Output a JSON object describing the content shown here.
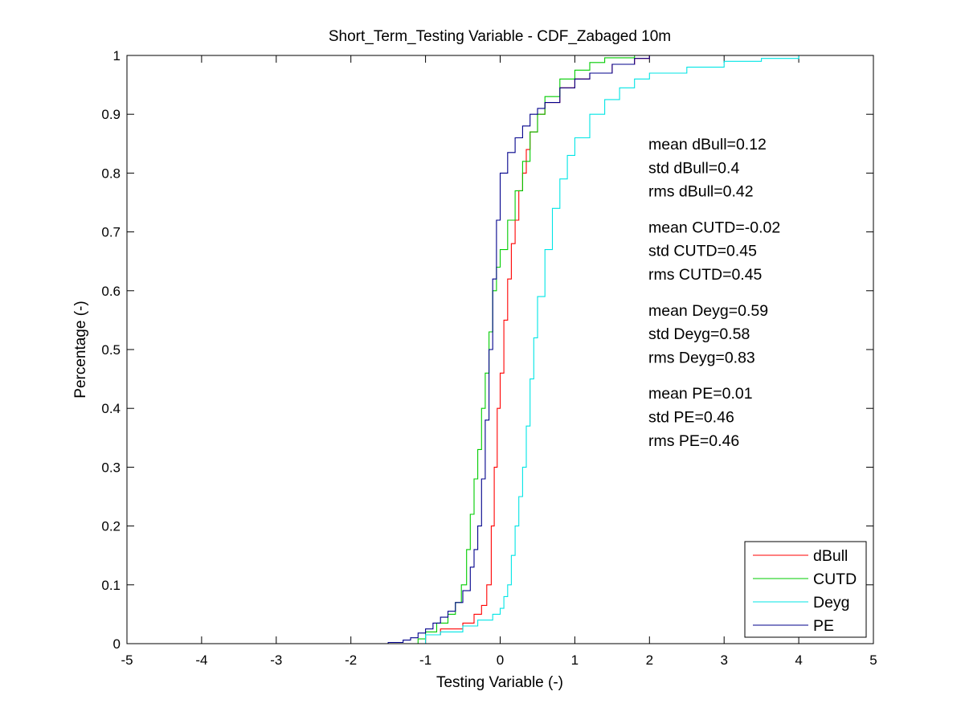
{
  "chart_data": {
    "type": "line",
    "title": "Short_Term_Testing Variable - CDF_Zabaged 10m",
    "xlabel": "Testing Variable (-)",
    "ylabel": "Percentage (-)",
    "xlim": [
      -5,
      5
    ],
    "ylim": [
      0,
      1
    ],
    "xticks": [
      -5,
      -4,
      -3,
      -2,
      -1,
      0,
      1,
      2,
      3,
      4,
      5
    ],
    "xtick_labels": [
      "-5",
      "-4",
      "-3",
      "-2",
      "-1",
      "0",
      "1",
      "2",
      "3",
      "4",
      "5"
    ],
    "yticks": [
      0,
      0.1,
      0.2,
      0.3,
      0.4,
      0.5,
      0.6,
      0.7,
      0.8,
      0.9,
      1
    ],
    "ytick_labels": [
      "0",
      "0.1",
      "0.2",
      "0.3",
      "0.4",
      "0.5",
      "0.6",
      "0.7",
      "0.8",
      "0.9",
      "1"
    ],
    "grid": false,
    "legend_position": "bottom-right",
    "series": [
      {
        "name": "dBull",
        "color": "#ff0000",
        "x": [
          -1.2,
          -1.0,
          -0.8,
          -0.5,
          -0.35,
          -0.25,
          -0.18,
          -0.12,
          -0.08,
          -0.04,
          0.0,
          0.05,
          0.1,
          0.15,
          0.2,
          0.25,
          0.3,
          0.35,
          0.4,
          0.5,
          0.6,
          0.8,
          1.0,
          1.2,
          1.5,
          1.8,
          2.0,
          2.4
        ],
        "y": [
          0.0,
          0.015,
          0.025,
          0.035,
          0.05,
          0.065,
          0.1,
          0.2,
          0.3,
          0.4,
          0.46,
          0.55,
          0.62,
          0.68,
          0.72,
          0.77,
          0.8,
          0.84,
          0.87,
          0.9,
          0.92,
          0.945,
          0.96,
          0.97,
          0.985,
          0.995,
          1.0,
          1.0
        ]
      },
      {
        "name": "CUTD",
        "color": "#00cc00",
        "x": [
          -1.25,
          -1.1,
          -1.0,
          -0.85,
          -0.7,
          -0.6,
          -0.52,
          -0.45,
          -0.4,
          -0.35,
          -0.3,
          -0.25,
          -0.2,
          -0.15,
          -0.1,
          -0.05,
          0.0,
          0.1,
          0.2,
          0.3,
          0.4,
          0.5,
          0.6,
          0.8,
          1.0,
          1.2,
          1.4,
          1.8
        ],
        "y": [
          0.0,
          0.008,
          0.02,
          0.035,
          0.05,
          0.07,
          0.1,
          0.16,
          0.22,
          0.28,
          0.33,
          0.4,
          0.46,
          0.53,
          0.6,
          0.64,
          0.67,
          0.72,
          0.77,
          0.82,
          0.87,
          0.9,
          0.93,
          0.96,
          0.975,
          0.988,
          0.996,
          1.0
        ]
      },
      {
        "name": "Deyg",
        "color": "#00e5e5",
        "x": [
          -1.1,
          -1.0,
          -0.8,
          -0.5,
          -0.3,
          -0.1,
          0.0,
          0.05,
          0.1,
          0.15,
          0.2,
          0.25,
          0.3,
          0.35,
          0.4,
          0.45,
          0.5,
          0.6,
          0.7,
          0.8,
          0.9,
          1.0,
          1.2,
          1.4,
          1.6,
          1.8,
          2.0,
          2.5,
          3.0,
          3.5,
          4.0
        ],
        "y": [
          0.0,
          0.015,
          0.02,
          0.03,
          0.04,
          0.05,
          0.06,
          0.08,
          0.1,
          0.15,
          0.2,
          0.25,
          0.3,
          0.37,
          0.45,
          0.52,
          0.59,
          0.67,
          0.74,
          0.79,
          0.83,
          0.86,
          0.9,
          0.925,
          0.945,
          0.96,
          0.97,
          0.98,
          0.99,
          0.995,
          1.0
        ]
      },
      {
        "name": "PE",
        "color": "#00008b",
        "x": [
          -2.0,
          -1.5,
          -1.3,
          -1.2,
          -1.1,
          -1.0,
          -0.9,
          -0.8,
          -0.7,
          -0.6,
          -0.5,
          -0.4,
          -0.35,
          -0.3,
          -0.25,
          -0.2,
          -0.15,
          -0.1,
          -0.05,
          0.0,
          0.1,
          0.2,
          0.3,
          0.4,
          0.5,
          0.6,
          0.8,
          1.0,
          1.2,
          1.5,
          1.8,
          2.0
        ],
        "y": [
          0.0,
          0.002,
          0.006,
          0.01,
          0.018,
          0.025,
          0.035,
          0.045,
          0.055,
          0.07,
          0.09,
          0.13,
          0.16,
          0.2,
          0.28,
          0.38,
          0.5,
          0.62,
          0.72,
          0.8,
          0.835,
          0.86,
          0.88,
          0.9,
          0.91,
          0.92,
          0.945,
          0.96,
          0.97,
          0.985,
          0.995,
          1.0
        ]
      }
    ],
    "annotations": [
      [
        "mean dBull=0.12",
        "std dBull=0.4",
        "rms dBull=0.42"
      ],
      [
        "mean CUTD=-0.02",
        "std CUTD=0.45",
        "rms CUTD=0.45"
      ],
      [
        "mean Deyg=0.59",
        "std Deyg=0.58",
        "rms Deyg=0.83"
      ],
      [
        "mean PE=0.01",
        "std PE=0.46",
        "rms PE=0.46"
      ]
    ]
  }
}
